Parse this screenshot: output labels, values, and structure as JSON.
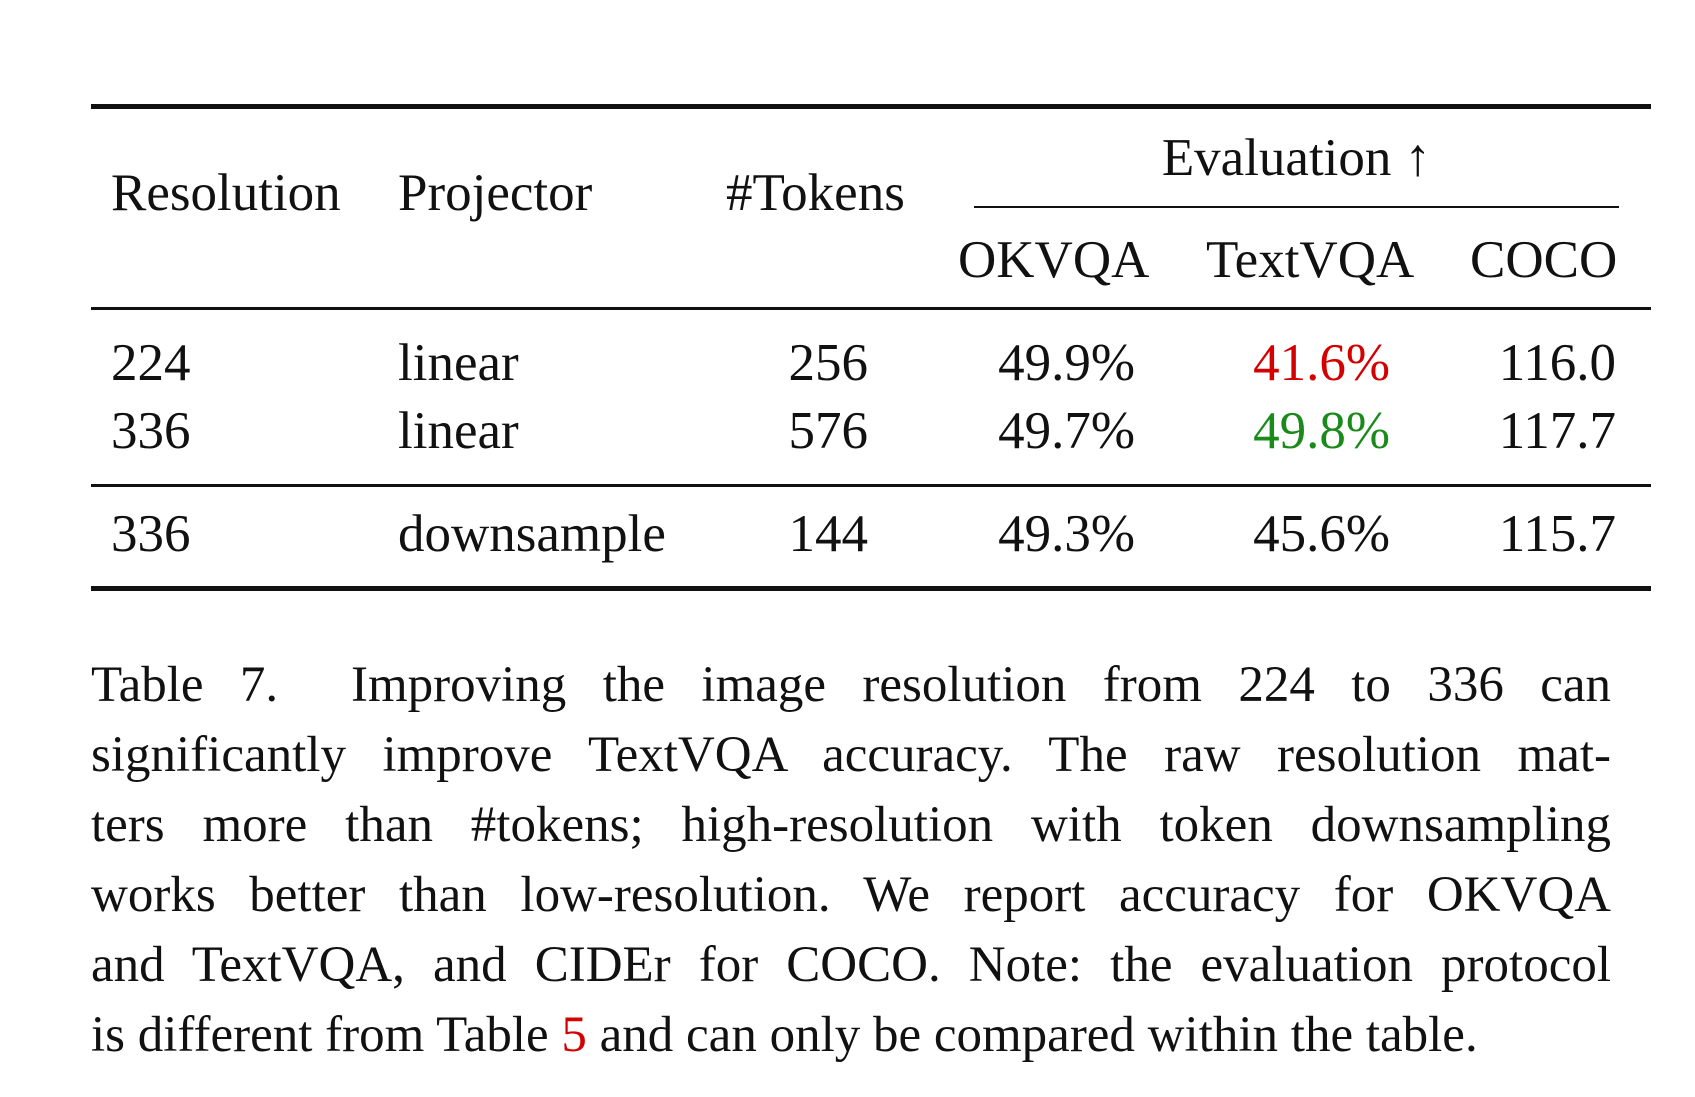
{
  "table": {
    "headers": {
      "resolution": "Resolution",
      "projector": "Projector",
      "tokens": "#Tokens",
      "evaluation": "Evaluation ↑",
      "okvqa": "OKVQA",
      "textvqa": "TextVQA",
      "coco": "COCO"
    },
    "rows": [
      {
        "resolution": "224",
        "projector": "linear",
        "tokens": "256",
        "okvqa": "49.9%",
        "textvqa": "41.6%",
        "coco": "116.0"
      },
      {
        "resolution": "336",
        "projector": "linear",
        "tokens": "576",
        "okvqa": "49.7%",
        "textvqa": "49.8%",
        "coco": "117.7"
      },
      {
        "resolution": "336",
        "projector": "downsample",
        "tokens": "144",
        "okvqa": "49.3%",
        "textvqa": "45.6%",
        "coco": "115.7"
      }
    ],
    "highlight_colors": {
      "low": "#d40000",
      "high": "#1a8a1a"
    }
  },
  "caption": {
    "lines": [
      "Table 7.  Improving the image resolution from 224 to 336 can",
      "significantly improve TextVQA accuracy. The raw resolution mat-",
      "ters more than #tokens; high-resolution with token downsampling",
      "works better than low-resolution. We report accuracy for OKVQA",
      "and TextVQA, and CIDEr for COCO. Note: the evaluation protocol"
    ],
    "last_line_before": "is different from Table ",
    "table_ref": "5",
    "last_line_after": " and can only be compared within the table.",
    "ref_color": "#d40000"
  }
}
